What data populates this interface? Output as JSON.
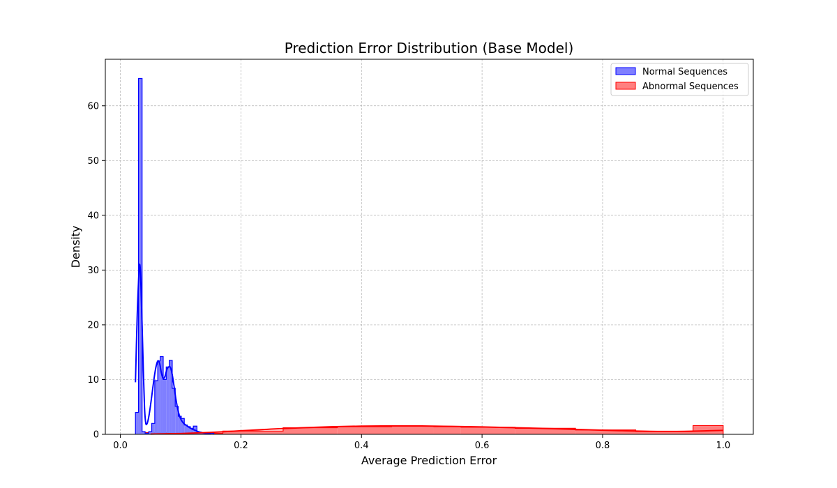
{
  "chart_data": {
    "type": "histogram",
    "title": "Prediction Error Distribution (Base Model)",
    "xlabel": "Average Prediction Error",
    "ylabel": "Density",
    "xlim": [
      -0.025,
      1.05
    ],
    "ylim": [
      0,
      68.5
    ],
    "xticks": [
      0.0,
      0.2,
      0.4,
      0.6,
      0.8,
      1.0
    ],
    "xtick_labels": [
      "0.0",
      "0.2",
      "0.4",
      "0.6",
      "0.8",
      "1.0"
    ],
    "yticks": [
      0,
      10,
      20,
      30,
      40,
      50,
      60
    ],
    "ytick_labels": [
      "0",
      "10",
      "20",
      "30",
      "40",
      "50",
      "60"
    ],
    "grid": true,
    "legend_position": "top-right",
    "series": [
      {
        "name": "Normal Sequences",
        "fill_color": "#7f7fff",
        "line_color": "#0000ff",
        "bins": [
          {
            "x0": 0.025,
            "x1": 0.03,
            "density": 4.0
          },
          {
            "x0": 0.03,
            "x1": 0.036,
            "density": 65.0
          },
          {
            "x0": 0.036,
            "x1": 0.041,
            "density": 0.5
          },
          {
            "x0": 0.041,
            "x1": 0.047,
            "density": 0.2
          },
          {
            "x0": 0.047,
            "x1": 0.052,
            "density": 0.5
          },
          {
            "x0": 0.052,
            "x1": 0.057,
            "density": 2.0
          },
          {
            "x0": 0.057,
            "x1": 0.062,
            "density": 9.8
          },
          {
            "x0": 0.062,
            "x1": 0.066,
            "density": 13.4
          },
          {
            "x0": 0.066,
            "x1": 0.071,
            "density": 14.2
          },
          {
            "x0": 0.071,
            "x1": 0.076,
            "density": 10.0
          },
          {
            "x0": 0.076,
            "x1": 0.081,
            "density": 12.3
          },
          {
            "x0": 0.081,
            "x1": 0.086,
            "density": 13.5
          },
          {
            "x0": 0.086,
            "x1": 0.091,
            "density": 8.4
          },
          {
            "x0": 0.091,
            "x1": 0.096,
            "density": 5.1
          },
          {
            "x0": 0.096,
            "x1": 0.101,
            "density": 3.3
          },
          {
            "x0": 0.101,
            "x1": 0.106,
            "density": 2.9
          },
          {
            "x0": 0.106,
            "x1": 0.111,
            "density": 1.7
          },
          {
            "x0": 0.111,
            "x1": 0.116,
            "density": 1.4
          },
          {
            "x0": 0.116,
            "x1": 0.121,
            "density": 1.1
          },
          {
            "x0": 0.121,
            "x1": 0.127,
            "density": 1.5
          },
          {
            "x0": 0.127,
            "x1": 0.134,
            "density": 0.4
          },
          {
            "x0": 0.134,
            "x1": 0.142,
            "density": 0.3
          },
          {
            "x0": 0.142,
            "x1": 0.155,
            "density": 0.2
          }
        ],
        "kde": {
          "x": [
            0.025,
            0.028,
            0.031,
            0.032,
            0.033,
            0.034,
            0.036,
            0.038,
            0.04,
            0.042,
            0.044,
            0.046,
            0.048,
            0.05,
            0.053,
            0.056,
            0.059,
            0.062,
            0.065,
            0.068,
            0.071,
            0.074,
            0.077,
            0.08,
            0.083,
            0.086,
            0.089,
            0.092,
            0.095,
            0.098,
            0.101,
            0.105,
            0.11,
            0.115,
            0.12,
            0.125,
            0.13,
            0.14,
            0.15
          ],
          "y": [
            9.5,
            22.0,
            30.0,
            31.0,
            30.2,
            27.5,
            20.0,
            12.0,
            5.0,
            2.1,
            1.9,
            2.6,
            3.8,
            5.3,
            7.8,
            10.3,
            12.3,
            13.4,
            13.0,
            11.2,
            10.2,
            10.6,
            11.8,
            12.3,
            12.2,
            10.9,
            8.8,
            6.5,
            4.7,
            3.4,
            2.6,
            2.0,
            1.6,
            1.2,
            0.9,
            0.7,
            0.45,
            0.2,
            0.1
          ]
        }
      },
      {
        "name": "Abnormal Sequences",
        "fill_color": "#ff8080",
        "line_color": "#ff0000",
        "bins": [
          {
            "x0": 0.035,
            "x1": 0.08,
            "density": 0.3
          },
          {
            "x0": 0.08,
            "x1": 0.125,
            "density": 0.1
          },
          {
            "x0": 0.125,
            "x1": 0.17,
            "density": 0.2
          },
          {
            "x0": 0.17,
            "x1": 0.27,
            "density": 0.6
          },
          {
            "x0": 0.27,
            "x1": 0.36,
            "density": 1.2
          },
          {
            "x0": 0.36,
            "x1": 0.45,
            "density": 1.4
          },
          {
            "x0": 0.45,
            "x1": 0.52,
            "density": 1.5
          },
          {
            "x0": 0.52,
            "x1": 0.565,
            "density": 1.4
          },
          {
            "x0": 0.565,
            "x1": 0.655,
            "density": 1.3
          },
          {
            "x0": 0.655,
            "x1": 0.755,
            "density": 1.1
          },
          {
            "x0": 0.755,
            "x1": 0.855,
            "density": 0.8
          },
          {
            "x0": 0.855,
            "x1": 0.95,
            "density": 0.5
          },
          {
            "x0": 0.95,
            "x1": 1.0,
            "density": 1.6
          }
        ],
        "kde": {
          "x": [
            0.05,
            0.1,
            0.15,
            0.2,
            0.25,
            0.3,
            0.35,
            0.4,
            0.45,
            0.5,
            0.55,
            0.6,
            0.65,
            0.7,
            0.75,
            0.8,
            0.85,
            0.9,
            0.95,
            1.0
          ],
          "y": [
            0.05,
            0.15,
            0.35,
            0.65,
            0.95,
            1.2,
            1.38,
            1.5,
            1.55,
            1.52,
            1.45,
            1.35,
            1.22,
            1.08,
            0.92,
            0.75,
            0.6,
            0.52,
            0.58,
            0.72
          ]
        }
      }
    ]
  }
}
